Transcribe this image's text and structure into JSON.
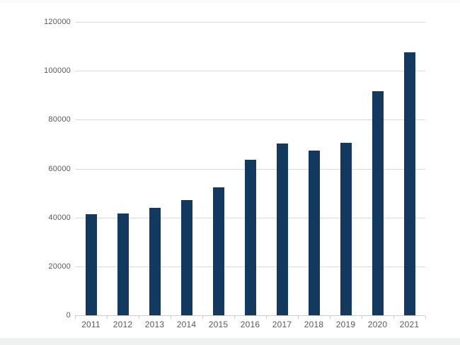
{
  "chart_data": {
    "type": "bar",
    "title": "",
    "xlabel": "",
    "ylabel": "",
    "categories": [
      "2011",
      "2012",
      "2013",
      "2014",
      "2015",
      "2016",
      "2017",
      "2018",
      "2019",
      "2020",
      "2021"
    ],
    "values": [
      41300,
      41500,
      44000,
      47100,
      52400,
      63600,
      70200,
      67400,
      70600,
      91800,
      107600
    ],
    "ylim": [
      0,
      120000
    ],
    "yticks": [
      0,
      20000,
      40000,
      60000,
      80000,
      100000,
      120000
    ],
    "ytick_labels": [
      "0",
      "20000",
      "40000",
      "60000",
      "80000",
      "100000",
      "120000"
    ],
    "grid": true,
    "legend": false,
    "colors": {
      "bar": "#14395e",
      "gridline": "#d9d9d9",
      "axis_line": "#c9cdcc",
      "tick": "#c9cdcc",
      "label_text": "#595959",
      "background": "#ffffff",
      "footer_strip": "#eff1f0"
    }
  }
}
